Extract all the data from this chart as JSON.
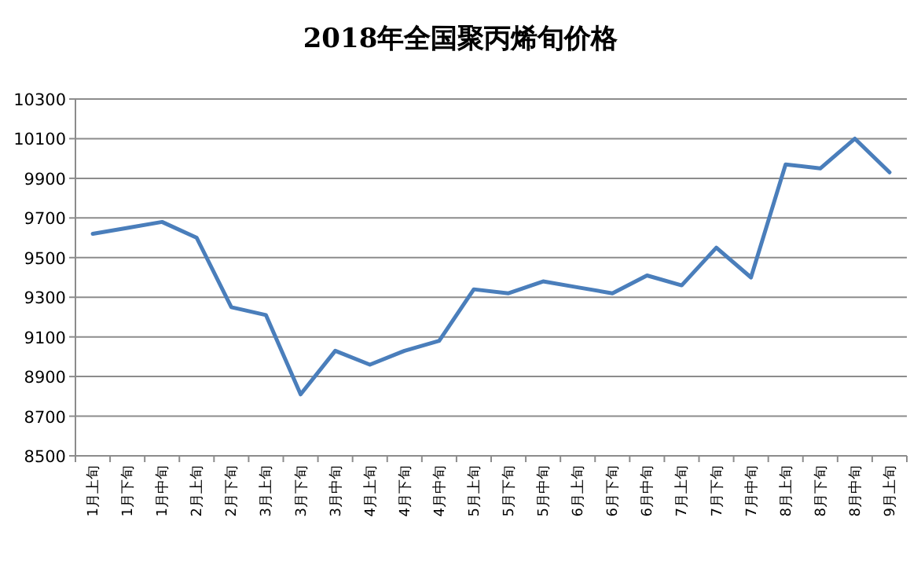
{
  "chart_data": {
    "type": "line",
    "title": "2018年全国聚丙烯旬价格",
    "categories": [
      "1月上旬",
      "1月下旬",
      "1月中旬",
      "2月上旬",
      "2月下旬",
      "3月上旬",
      "3月下旬",
      "3月中旬",
      "4月上旬",
      "4月下旬",
      "4月中旬",
      "5月上旬",
      "5月下旬",
      "5月中旬",
      "6月上旬",
      "6月下旬",
      "6月中旬",
      "7月上旬",
      "7月下旬",
      "7月中旬",
      "8月上旬",
      "8月下旬",
      "8月中旬",
      "9月上旬"
    ],
    "series": [
      {
        "color": "#4a7ebb",
        "values": [
          9620,
          9650,
          9680,
          9600,
          9250,
          9210,
          8810,
          9030,
          8960,
          9030,
          9080,
          9340,
          9320,
          9380,
          9350,
          9320,
          9410,
          9360,
          9550,
          9400,
          9970,
          9950,
          10100,
          9930
        ]
      }
    ],
    "ylim": [
      8500,
      10300
    ],
    "yticks": [
      8500,
      8700,
      8900,
      9100,
      9300,
      9500,
      9700,
      9900,
      10100,
      10300
    ],
    "grid": "y",
    "marker": "none",
    "line_style": "solid"
  }
}
